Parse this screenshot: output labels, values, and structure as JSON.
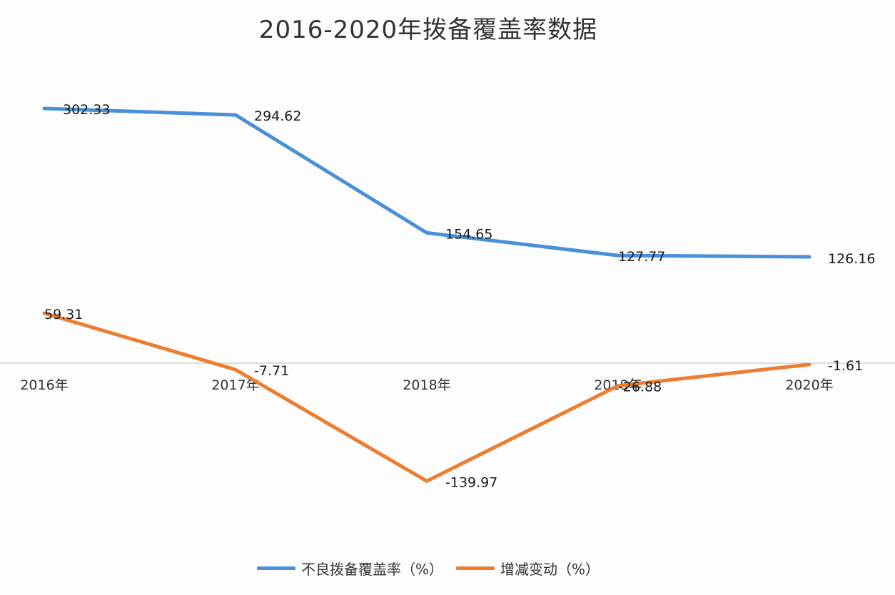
{
  "title": "2016-2020年拨备覆盖率数据",
  "legend": [
    {
      "label": "不良拨备覆盖率（%）",
      "color": "#4a90d9"
    },
    {
      "label": "增减变动（%）",
      "color": "#ed7d31"
    }
  ],
  "x_ticks": [
    "2016年",
    "2017年",
    "2018年",
    "2019年",
    "2020年"
  ],
  "series_labels": {
    "coverage": [
      "302.33",
      "294.62",
      "154.65",
      "127.77",
      "126.16"
    ],
    "change": [
      "59.31",
      "-7.71",
      "-139.97",
      "-26.88",
      "-1.61"
    ]
  },
  "chart_data": {
    "type": "line",
    "title": "2016-2020年拨备覆盖率数据",
    "xlabel": "",
    "ylabel": "",
    "categories": [
      "2016年",
      "2017年",
      "2018年",
      "2019年",
      "2020年"
    ],
    "series": [
      {
        "name": "不良拨备覆盖率（%）",
        "color": "#4a90d9",
        "values": [
          302.33,
          294.62,
          154.65,
          127.77,
          126.16
        ]
      },
      {
        "name": "增减变动（%）",
        "color": "#ed7d31",
        "values": [
          59.31,
          -7.71,
          -139.97,
          -26.88,
          -1.61
        ]
      }
    ],
    "grid": false,
    "zero_line": true,
    "data_labels": true,
    "legend_position": "bottom",
    "ylim": [
      -160,
      320
    ]
  }
}
